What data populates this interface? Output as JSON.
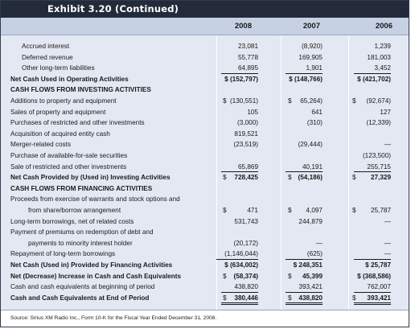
{
  "title": "Exhibit 3.20 (Continued)",
  "years": [
    "2008",
    "2007",
    "2006"
  ],
  "rows": [
    {
      "label": "Accrued interest",
      "indent": 1,
      "bold": false,
      "c": [
        "",
        "",
        ""
      ],
      "v": [
        "23,081",
        "(8,920)",
        "1,239"
      ],
      "ul": [
        "",
        "",
        ""
      ]
    },
    {
      "label": "Deferred revenue",
      "indent": 1,
      "bold": false,
      "c": [
        "",
        "",
        ""
      ],
      "v": [
        "55,778",
        "169,905",
        "181,003"
      ],
      "ul": [
        "",
        "",
        ""
      ]
    },
    {
      "label": "Other long-term liabilities",
      "indent": 1,
      "bold": false,
      "c": [
        "",
        "",
        ""
      ],
      "v": [
        "64,895",
        "1,901",
        "3,452"
      ],
      "ul": [
        "ul",
        "ul",
        "ul"
      ]
    },
    {
      "label": "Net Cash Used in Operating Activities",
      "indent": 0,
      "bold": true,
      "c": [
        "",
        "",
        ""
      ],
      "v": [
        "$ (152,797)",
        "$ (148,766)",
        "$ (421,702)"
      ],
      "ul": [
        "",
        "",
        ""
      ]
    },
    {
      "label": "CASH FLOWS FROM INVESTING ACTIVITIES",
      "indent": 0,
      "bold": true,
      "c": [
        "",
        "",
        ""
      ],
      "v": [
        "",
        "",
        ""
      ],
      "ul": [
        "",
        "",
        ""
      ]
    },
    {
      "label": "Additions to property and equipment",
      "indent": 0,
      "bold": false,
      "c": [
        "$",
        "$",
        "$"
      ],
      "v": [
        "(130,551)",
        "65,264)",
        "(92,674)"
      ],
      "ul": [
        "",
        "",
        ""
      ]
    },
    {
      "label": "Sales of property and equipment",
      "indent": 0,
      "bold": false,
      "c": [
        "",
        "",
        ""
      ],
      "v": [
        "105",
        "641",
        "127"
      ],
      "ul": [
        "",
        "",
        ""
      ]
    },
    {
      "label": "Purchases of restricted and other investments",
      "indent": 0,
      "bold": false,
      "c": [
        "",
        "",
        ""
      ],
      "v": [
        "(3,000)",
        "(310)",
        "(12,339)"
      ],
      "ul": [
        "",
        "",
        ""
      ]
    },
    {
      "label": "Acquisition of acquired entity cash",
      "indent": 0,
      "bold": false,
      "c": [
        "",
        "",
        ""
      ],
      "v": [
        "819,521",
        "",
        ""
      ],
      "ul": [
        "",
        "",
        ""
      ]
    },
    {
      "label": "Merger-related costs",
      "indent": 0,
      "bold": false,
      "c": [
        "",
        "",
        ""
      ],
      "v": [
        "(23,519)",
        "(29,444)",
        "—"
      ],
      "ul": [
        "",
        "",
        ""
      ]
    },
    {
      "label": "Purchase of available-for-sale securities",
      "indent": 0,
      "bold": false,
      "c": [
        "",
        "",
        ""
      ],
      "v": [
        "",
        "",
        "(123,500)"
      ],
      "ul": [
        "",
        "",
        ""
      ]
    },
    {
      "label": "Sale of restricted and other investments",
      "indent": 0,
      "bold": false,
      "c": [
        "",
        "",
        ""
      ],
      "v": [
        "65,869",
        "40,191",
        "255,715"
      ],
      "ul": [
        "ul",
        "ul",
        "ul"
      ]
    },
    {
      "label": "Net Cash Provided by (Used in) Investing Activities",
      "indent": 0,
      "bold": true,
      "c": [
        "$",
        "$",
        "$"
      ],
      "v": [
        "728,425",
        "(54,186)",
        "27,329"
      ],
      "ul": [
        "",
        "",
        ""
      ]
    },
    {
      "label": "CASH FLOWS FROM FINANCING ACTIVITIES",
      "indent": 0,
      "bold": true,
      "c": [
        "",
        "",
        ""
      ],
      "v": [
        "",
        "",
        ""
      ],
      "ul": [
        "",
        "",
        ""
      ]
    },
    {
      "label": "Proceeds from exercise of warrants and stock options and",
      "indent": 0,
      "bold": false,
      "c": [
        "",
        "",
        ""
      ],
      "v": [
        "",
        "",
        ""
      ],
      "ul": [
        "",
        "",
        ""
      ]
    },
    {
      "label": "from share/borrow arrangement",
      "indent": 2,
      "bold": false,
      "c": [
        "$",
        "$",
        "$"
      ],
      "v": [
        "471",
        "4,097",
        "25,787"
      ],
      "ul": [
        "",
        "",
        ""
      ]
    },
    {
      "label": "Long-term borrowings, net of related costs",
      "indent": 0,
      "bold": false,
      "c": [
        "",
        "",
        ""
      ],
      "v": [
        "531,743",
        "244,879",
        "—"
      ],
      "ul": [
        "",
        "",
        ""
      ]
    },
    {
      "label": "Payment of premiums on redemption of debt and",
      "indent": 0,
      "bold": false,
      "c": [
        "",
        "",
        ""
      ],
      "v": [
        "",
        "",
        ""
      ],
      "ul": [
        "",
        "",
        ""
      ]
    },
    {
      "label": "payments to minority interest holder",
      "indent": 2,
      "bold": false,
      "c": [
        "",
        "",
        ""
      ],
      "v": [
        "(20,172)",
        "—",
        "—"
      ],
      "ul": [
        "",
        "",
        ""
      ]
    },
    {
      "label": "Repayment of long-term borrowings",
      "indent": 0,
      "bold": false,
      "c": [
        "",
        "",
        ""
      ],
      "v": [
        "(1,146,044)",
        "(625)",
        "—"
      ],
      "ul": [
        "ul",
        "ul",
        "ul"
      ]
    },
    {
      "label": "Net Cash (Used in) Provided by Financing Activities",
      "indent": 0,
      "bold": true,
      "c": [
        "",
        "",
        ""
      ],
      "v": [
        "$ (634,002)",
        "$ 248,351",
        "$ 25,787"
      ],
      "ul": [
        "",
        "",
        ""
      ]
    },
    {
      "label": "Net (Decrease) Increase in Cash and Cash Equivalents",
      "indent": 0,
      "bold": true,
      "c": [
        "$",
        "$",
        ""
      ],
      "v": [
        "(58,374)",
        "45,399",
        "$ (368,586)"
      ],
      "ul": [
        "",
        "",
        ""
      ]
    },
    {
      "label": "Cash and cash equivalents at beginning of period",
      "indent": 0,
      "bold": false,
      "c": [
        "",
        "",
        ""
      ],
      "v": [
        "438,820",
        "393,421",
        "762,007"
      ],
      "ul": [
        "ul",
        "ul",
        "ul"
      ]
    },
    {
      "label": "Cash and Cash Equivalents at End of Period",
      "indent": 0,
      "bold": true,
      "c": [
        "$",
        "$",
        "$"
      ],
      "v": [
        "380,446",
        "438,820",
        "393,421"
      ],
      "ul": [
        "dul",
        "dul",
        "dul"
      ]
    }
  ],
  "source": "Source: Sirius XM Radio Inc., Form 10-K for the Fiscal Year Ended December 31, 2008."
}
